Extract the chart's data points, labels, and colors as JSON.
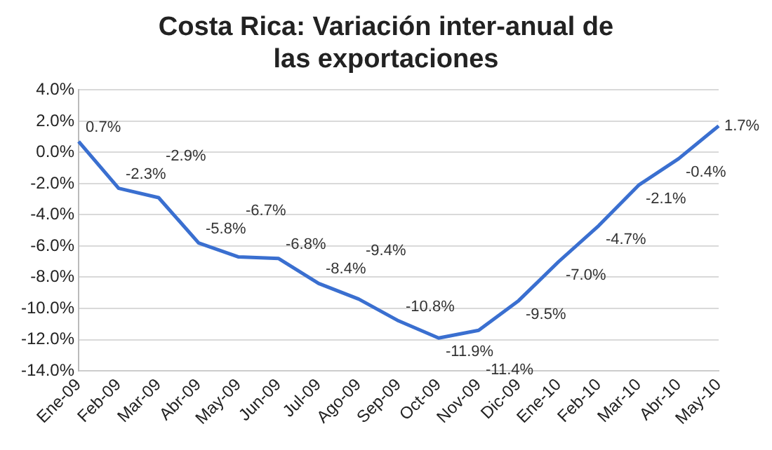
{
  "chart_data": {
    "type": "line",
    "title": "Costa Rica: Variación inter-anual de las exportaciones",
    "categories": [
      "Ene-09",
      "Feb-09",
      "Mar-09",
      "Abr-09",
      "May-09",
      "Jun-09",
      "Jul-09",
      "Ago-09",
      "Sep-09",
      "Oct-09",
      "Nov-09",
      "Dic-09",
      "Ene-10",
      "Feb-10",
      "Mar-10",
      "Abr-10",
      "May-10"
    ],
    "series": [
      {
        "color": "#3a6fd0",
        "values": [
          0.7,
          -2.3,
          -2.9,
          -5.8,
          -6.7,
          -6.8,
          -8.4,
          -9.4,
          -10.8,
          -11.9,
          -11.4,
          -9.5,
          -7.0,
          -4.7,
          -2.1,
          -0.4,
          1.7
        ],
        "value_labels": [
          "0.7%",
          "-2.3%",
          "-2.9%",
          "-5.8%",
          "-6.7%",
          "-6.8%",
          "-8.4%",
          "-9.4%",
          "-10.8%",
          "-11.9%",
          "-11.4%",
          "-9.5%",
          "-7.0%",
          "-4.7%",
          "-2.1%",
          "-0.4%",
          "1.7%"
        ]
      }
    ],
    "ylim": [
      -14,
      4
    ],
    "yticks": [
      {
        "value": -14,
        "label": "-14.0%"
      },
      {
        "value": -12,
        "label": "-12.0%"
      },
      {
        "value": -10,
        "label": "-10.0%"
      },
      {
        "value": -8,
        "label": "-8.0%"
      },
      {
        "value": -6,
        "label": "-6.0%"
      },
      {
        "value": -4,
        "label": "-4.0%"
      },
      {
        "value": -2,
        "label": "-2.0%"
      },
      {
        "value": 0,
        "label": "0.0%"
      },
      {
        "value": 2,
        "label": "2.0%"
      },
      {
        "value": 4,
        "label": "4.0%"
      }
    ],
    "grid": "y",
    "legend": false,
    "marker": "none",
    "line_style": "solid"
  }
}
